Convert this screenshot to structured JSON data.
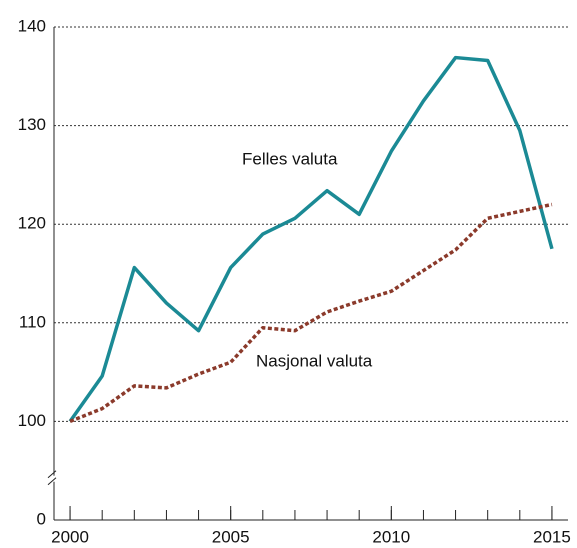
{
  "chart_data": {
    "type": "line",
    "x": [
      2000,
      2001,
      2002,
      2003,
      2004,
      2005,
      2006,
      2007,
      2008,
      2009,
      2010,
      2011,
      2012,
      2013,
      2014,
      2015
    ],
    "series": [
      {
        "name": "Felles valuta",
        "color": "#1b8a95",
        "dashed": false,
        "values": [
          100,
          104.6,
          115.6,
          112,
          109.2,
          115.6,
          119,
          120.6,
          123.4,
          121,
          127.4,
          132.5,
          136.9,
          136.6,
          129.5,
          117.5
        ]
      },
      {
        "name": "Nasjonal valuta",
        "color": "#8b3a2b",
        "dashed": true,
        "values": [
          100,
          101.3,
          103.6,
          103.4,
          104.8,
          106,
          109.5,
          109.2,
          111.1,
          112.2,
          113.2,
          115.3,
          117.4,
          120.6,
          121.3,
          122
        ]
      }
    ],
    "xlim": [
      1999.5,
      2015.5
    ],
    "xticks": [
      2000,
      2005,
      2010,
      2015
    ],
    "ylim": [
      0,
      140
    ],
    "yticks": [
      0,
      100,
      110,
      120,
      130,
      140
    ],
    "axis_break": [
      0,
      100
    ],
    "grid": true
  }
}
